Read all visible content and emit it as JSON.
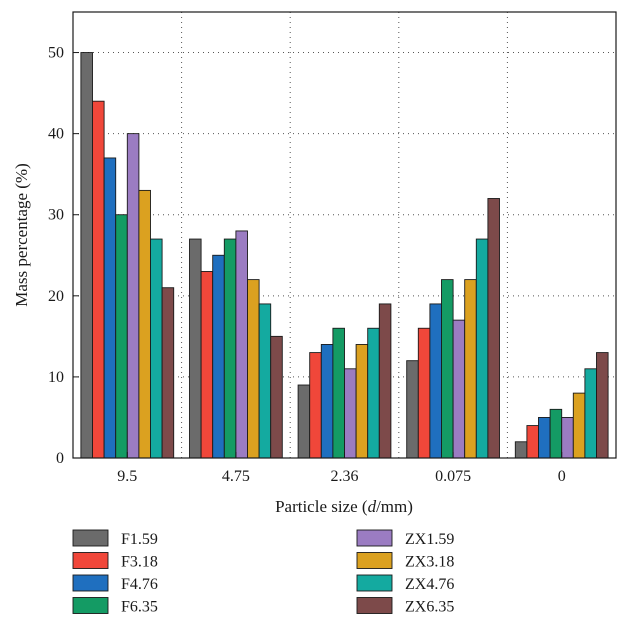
{
  "chart_data": {
    "type": "bar",
    "categories": [
      "9.5",
      "4.75",
      "2.36",
      "0.075",
      "0"
    ],
    "series": [
      {
        "name": "F1.59",
        "color": "#6b6b6b",
        "values": [
          50,
          27,
          9,
          12,
          2
        ]
      },
      {
        "name": "F3.18",
        "color": "#f0473a",
        "values": [
          44,
          23,
          13,
          16,
          4
        ]
      },
      {
        "name": "F4.76",
        "color": "#1f6fbf",
        "values": [
          37,
          25,
          14,
          19,
          5
        ]
      },
      {
        "name": "F6.35",
        "color": "#149b64",
        "values": [
          30,
          27,
          16,
          22,
          6
        ]
      },
      {
        "name": "ZX1.59",
        "color": "#9b7cc2",
        "values": [
          40,
          28,
          11,
          17,
          5
        ]
      },
      {
        "name": "ZX3.18",
        "color": "#dba120",
        "values": [
          33,
          22,
          14,
          22,
          8
        ]
      },
      {
        "name": "ZX4.76",
        "color": "#14aaa0",
        "values": [
          27,
          19,
          16,
          27,
          11
        ]
      },
      {
        "name": "ZX6.35",
        "color": "#7d4a4a",
        "values": [
          21,
          15,
          19,
          32,
          13
        ]
      }
    ],
    "xlabel": {
      "pre": "Particle size (",
      "ital": "d",
      "post": "/mm)"
    },
    "ylabel": "Mass percentage (%)",
    "ylim": [
      0,
      55
    ],
    "yticks": [
      "0",
      "10",
      "20",
      "30",
      "40",
      "50"
    ],
    "grid": "dotted",
    "legend_position": "bottom"
  }
}
